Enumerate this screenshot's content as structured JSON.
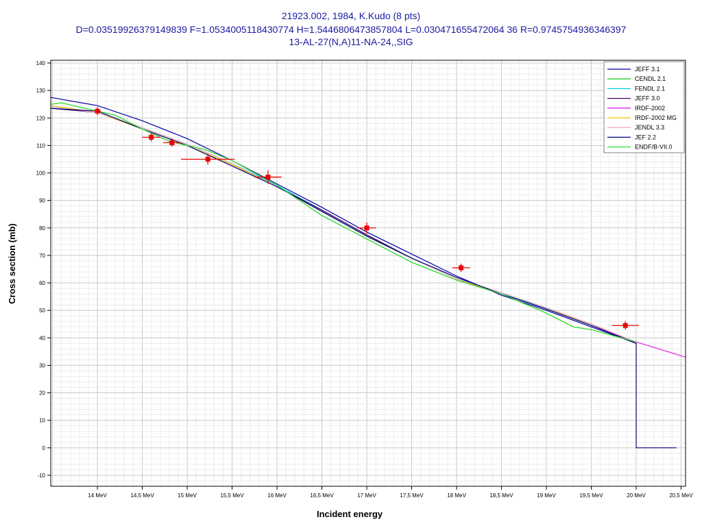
{
  "chart_data": {
    "type": "line",
    "title_lines": [
      "21923.002, 1984, K.Kudo (8 pts)",
      "D=0.03519926379149839 F=1.0534005118430774 H=1.5446806473857804 L=0.030471655472064 36 R=0.9745754936346397",
      "13-AL-27(N,A)11-NA-24,,SIG"
    ],
    "xlabel": "Incident energy",
    "ylabel": "Cross section (mb)",
    "xlim": [
      13.48,
      20.55
    ],
    "ylim": [
      -14,
      141
    ],
    "x_ticks": [
      {
        "v": 14.0,
        "label": "14 MeV"
      },
      {
        "v": 14.5,
        "label": "14,5 MeV"
      },
      {
        "v": 15.0,
        "label": "15 MeV"
      },
      {
        "v": 15.5,
        "label": "15,5 MeV"
      },
      {
        "v": 16.0,
        "label": "16 MeV"
      },
      {
        "v": 16.5,
        "label": "16,5 MeV"
      },
      {
        "v": 17.0,
        "label": "17 MeV"
      },
      {
        "v": 17.5,
        "label": "17,5 MeV"
      },
      {
        "v": 18.0,
        "label": "18 MeV"
      },
      {
        "v": 18.5,
        "label": "18,5 MeV"
      },
      {
        "v": 19.0,
        "label": "19 MeV"
      },
      {
        "v": 19.5,
        "label": "19,5 MeV"
      },
      {
        "v": 20.0,
        "label": "20 MeV"
      },
      {
        "v": 20.5,
        "label": "20,5 MeV"
      }
    ],
    "y_ticks": [
      {
        "v": 140,
        "label": "140"
      },
      {
        "v": 130,
        "label": "130"
      },
      {
        "v": 120,
        "label": "120"
      },
      {
        "v": 110,
        "label": "110"
      },
      {
        "v": 100,
        "label": "100"
      },
      {
        "v": 90,
        "label": "90"
      },
      {
        "v": 80,
        "label": "80"
      },
      {
        "v": 70,
        "label": "70"
      },
      {
        "v": 60,
        "label": "60"
      },
      {
        "v": 50,
        "label": "50"
      },
      {
        "v": 40,
        "label": "40"
      },
      {
        "v": 30,
        "label": "30"
      },
      {
        "v": 20,
        "label": "20"
      },
      {
        "v": 10,
        "label": "10"
      },
      {
        "v": 0,
        "label": "0"
      },
      {
        "v": -10,
        "label": "-10"
      }
    ],
    "grid": true,
    "legend_position": "top-right",
    "series": [
      {
        "name": "JEFF 3.1",
        "color": "#0000a0",
        "x": [
          13.48,
          14.0,
          14.5,
          15.0,
          15.5,
          16.0,
          16.5,
          17.0,
          17.5,
          18.0,
          18.5,
          19.0,
          19.5,
          20.0
        ],
        "y": [
          127.5,
          124.5,
          119.0,
          112.5,
          104.5,
          96.0,
          87.5,
          78.5,
          70.5,
          62.5,
          55.5,
          50.0,
          44.0,
          38.0
        ]
      },
      {
        "name": "CENDL 2.1",
        "color": "#22cc22",
        "x": [
          13.48,
          13.6,
          13.8,
          14.0,
          14.2,
          14.5,
          14.8,
          15.0,
          15.2,
          15.5,
          16.0,
          16.5,
          17.0,
          17.5,
          18.0,
          18.5,
          19.0,
          19.3,
          19.5,
          20.0
        ],
        "y": [
          125.0,
          125.5,
          124.0,
          122.5,
          121.0,
          116.0,
          111.5,
          110.0,
          108.5,
          104.5,
          95.5,
          84.5,
          76.0,
          67.5,
          61.0,
          56.0,
          49.0,
          44.0,
          43.0,
          38.5
        ]
      },
      {
        "name": "FENDL 2.1",
        "color": "#00d0e0",
        "x": [
          13.48,
          14.0,
          14.5,
          15.0,
          15.5,
          16.0,
          16.5,
          17.0,
          17.5,
          18.0,
          18.5,
          19.0,
          19.5,
          20.0
        ],
        "y": [
          124.0,
          122.0,
          116.5,
          110.5,
          103.5,
          95.5,
          86.5,
          77.5,
          69.0,
          61.5,
          56.0,
          51.0,
          45.0,
          38.5
        ]
      },
      {
        "name": "JEFF 3.0",
        "color": "#400060",
        "x": [
          13.48,
          14.0,
          14.5,
          15.0,
          15.5,
          16.0,
          16.5,
          17.0,
          17.5,
          18.0,
          18.5,
          19.0,
          19.5,
          20.0
        ],
        "y": [
          123.5,
          122.0,
          116.0,
          110.0,
          103.0,
          95.0,
          86.5,
          77.5,
          69.0,
          61.5,
          56.0,
          50.5,
          45.0,
          38.0
        ]
      },
      {
        "name": "IRDF-2002",
        "color": "#e020e0",
        "x": [
          19.5,
          20.0,
          20.55
        ],
        "y": [
          44.5,
          38.5,
          33.0
        ]
      },
      {
        "name": "IRDF-2002 MG",
        "color": "#f0c000",
        "x": [
          13.48,
          14.0,
          14.5,
          15.0,
          15.5,
          16.0,
          16.5,
          17.0,
          17.5,
          18.0,
          18.5,
          19.0,
          19.5,
          20.0
        ],
        "y": [
          124.5,
          122.0,
          116.0,
          110.0,
          103.0,
          95.0,
          86.0,
          77.0,
          69.0,
          61.5,
          56.0,
          50.5,
          45.0,
          38.5
        ]
      },
      {
        "name": "JENDL 3.3",
        "color": "#f0b0c0",
        "x": [
          13.48,
          14.0,
          14.5,
          15.0,
          15.5,
          16.0,
          16.5,
          17.0,
          17.5,
          18.0,
          18.5,
          19.0,
          19.5,
          20.0
        ],
        "y": [
          124.0,
          122.0,
          116.5,
          110.5,
          103.5,
          95.0,
          86.0,
          77.0,
          69.0,
          61.5,
          56.5,
          51.0,
          45.0,
          38.5
        ]
      },
      {
        "name": "JEF 2.2",
        "color": "#000080",
        "x": [
          13.48,
          14.0,
          14.5,
          15.0,
          15.5,
          16.0,
          16.5,
          17.0,
          17.5,
          18.0,
          18.5,
          19.0,
          19.5,
          20.0,
          20.0,
          20.45
        ],
        "y": [
          123.5,
          122.5,
          116.0,
          110.0,
          102.5,
          95.0,
          86.0,
          77.0,
          69.0,
          62.0,
          56.0,
          50.5,
          44.5,
          38.0,
          0.0,
          0.0
        ]
      },
      {
        "name": "ENDF/B-VII.0",
        "color": "#33dd33",
        "x": [
          13.48,
          13.6,
          13.8,
          14.0,
          14.2,
          14.5,
          14.8,
          15.0,
          15.2,
          15.5,
          16.0,
          16.5,
          17.0,
          17.5,
          18.0,
          18.5,
          19.0,
          19.3,
          19.5,
          20.0
        ],
        "y": [
          125.0,
          125.5,
          124.0,
          122.5,
          121.0,
          116.0,
          111.5,
          110.0,
          108.5,
          104.5,
          95.5,
          84.5,
          76.0,
          67.5,
          61.0,
          56.0,
          49.0,
          44.0,
          43.0,
          38.5
        ]
      }
    ],
    "points": {
      "name": "K.Kudo (8 pts)",
      "color": "#ee0000",
      "data": [
        {
          "x": 14.0,
          "y": 122.5,
          "xerr": 0.04,
          "yerr": 1.5
        },
        {
          "x": 14.6,
          "y": 113.0,
          "xerr": 0.1,
          "yerr": 1.5
        },
        {
          "x": 14.83,
          "y": 111.0,
          "xerr": 0.1,
          "yerr": 1.5
        },
        {
          "x": 15.23,
          "y": 105.0,
          "xerr": 0.3,
          "yerr": 2.0
        },
        {
          "x": 15.9,
          "y": 98.5,
          "xerr": 0.15,
          "yerr": 2.5
        },
        {
          "x": 17.0,
          "y": 80.0,
          "xerr": 0.1,
          "yerr": 2.0
        },
        {
          "x": 18.05,
          "y": 65.5,
          "xerr": 0.1,
          "yerr": 1.5
        },
        {
          "x": 19.88,
          "y": 44.5,
          "xerr": 0.15,
          "yerr": 1.5
        }
      ]
    }
  }
}
